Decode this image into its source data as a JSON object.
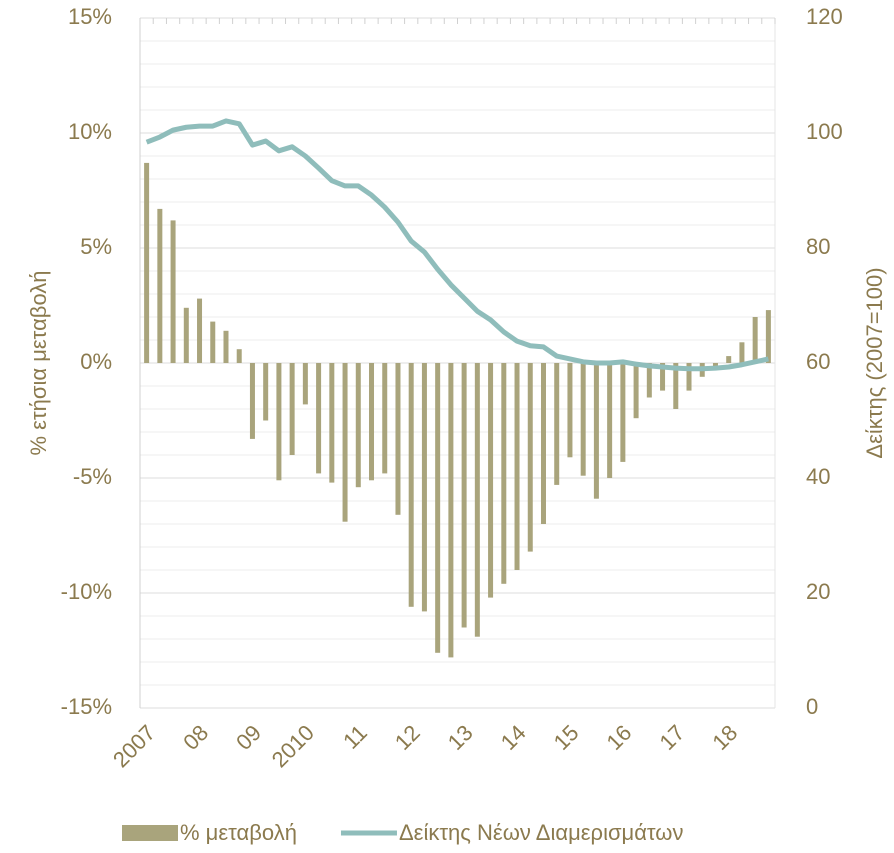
{
  "chart_data": {
    "type": "bar_line",
    "y_label": "% ετήσια μεταβολή",
    "y2_label": "Δείκτης (2007=100)",
    "categories": [
      "2007",
      null,
      null,
      null,
      "08",
      null,
      null,
      null,
      "09",
      null,
      null,
      null,
      "2010",
      null,
      null,
      null,
      "11",
      null,
      null,
      null,
      "12",
      null,
      null,
      null,
      "13",
      null,
      null,
      null,
      "14",
      null,
      null,
      null,
      "15",
      null,
      null,
      null,
      "16",
      null,
      null,
      null,
      "17",
      null,
      null,
      null,
      "18",
      null,
      null,
      null
    ],
    "series": [
      {
        "name": "% μεταβολή",
        "type": "bar",
        "color": "#a9a47c",
        "axis": "y",
        "values": [
          8.7,
          6.7,
          6.2,
          2.4,
          2.8,
          1.8,
          1.4,
          0.6,
          -3.3,
          -2.5,
          -5.1,
          -4.0,
          -1.8,
          -4.8,
          -5.2,
          -6.9,
          -5.4,
          -5.1,
          -4.8,
          -6.6,
          -10.6,
          -10.8,
          -12.6,
          -12.8,
          -11.5,
          -11.9,
          -10.2,
          -9.6,
          -9.0,
          -8.2,
          -7.0,
          -5.3,
          -4.1,
          -4.9,
          -5.9,
          -5.0,
          -4.3,
          -2.4,
          -1.5,
          -1.2,
          -2.0,
          -1.2,
          -0.6,
          -0.3,
          0.3,
          0.9,
          2.0,
          2.3
        ]
      },
      {
        "name": "Δείκτης Νέων Διαμερισμάτων",
        "type": "line",
        "color": "#8fbdbb",
        "axis": "y2",
        "values": [
          98.4,
          99.3,
          100.5,
          101.0,
          101.2,
          101.2,
          102.1,
          101.6,
          97.9,
          98.6,
          96.9,
          97.6,
          96.0,
          93.9,
          91.7,
          90.8,
          90.8,
          89.2,
          87.1,
          84.5,
          81.2,
          79.3,
          76.3,
          73.6,
          71.3,
          69.0,
          67.5,
          65.4,
          63.8,
          63.0,
          62.8,
          61.2,
          60.7,
          60.2,
          60.0,
          60.0,
          60.2,
          59.8,
          59.5,
          59.3,
          59.1,
          59.0,
          59.0,
          59.1,
          59.3,
          59.7,
          60.2,
          60.7
        ]
      }
    ],
    "ylim": [
      -15,
      15
    ],
    "yticks": [
      {
        "value": -15,
        "label": "-15%"
      },
      {
        "value": -10,
        "label": "-10%"
      },
      {
        "value": -5,
        "label": "-5%"
      },
      {
        "value": 0,
        "label": "0%"
      },
      {
        "value": 5,
        "label": "5%"
      },
      {
        "value": 10,
        "label": "10%"
      },
      {
        "value": 15,
        "label": "15%"
      }
    ],
    "y2lim": [
      0,
      120
    ],
    "y2ticks": [
      0,
      20,
      40,
      60,
      80,
      100,
      120
    ],
    "grid": true,
    "grid_minor_divisions": 5,
    "legend": "bottom"
  }
}
